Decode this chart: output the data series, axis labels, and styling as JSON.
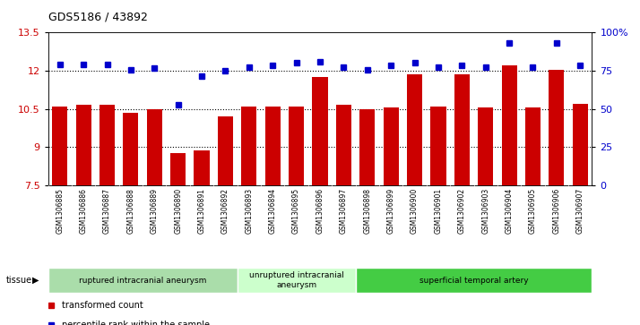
{
  "title": "GDS5186 / 43892",
  "samples": [
    "GSM1306885",
    "GSM1306886",
    "GSM1306887",
    "GSM1306888",
    "GSM1306889",
    "GSM1306890",
    "GSM1306891",
    "GSM1306892",
    "GSM1306893",
    "GSM1306894",
    "GSM1306895",
    "GSM1306896",
    "GSM1306897",
    "GSM1306898",
    "GSM1306899",
    "GSM1306900",
    "GSM1306901",
    "GSM1306902",
    "GSM1306903",
    "GSM1306904",
    "GSM1306905",
    "GSM1306906",
    "GSM1306907"
  ],
  "bar_values": [
    10.6,
    10.65,
    10.65,
    10.35,
    10.48,
    8.75,
    8.88,
    10.2,
    10.58,
    10.6,
    10.58,
    11.75,
    10.65,
    10.5,
    10.55,
    11.85,
    10.6,
    11.85,
    10.55,
    12.2,
    10.55,
    12.05,
    10.68
  ],
  "dot_values": [
    12.25,
    12.25,
    12.25,
    12.05,
    12.1,
    10.65,
    11.8,
    12.0,
    12.15,
    12.2,
    12.3,
    12.35,
    12.15,
    12.05,
    12.2,
    12.3,
    12.15,
    12.2,
    12.15,
    13.1,
    12.15,
    13.1,
    12.2
  ],
  "ylim_left": [
    7.5,
    13.5
  ],
  "yticks_left": [
    7.5,
    9.0,
    10.5,
    12.0,
    13.5
  ],
  "ytick_labels_left": [
    "7.5",
    "9",
    "10.5",
    "12",
    "13.5"
  ],
  "yticks_right_pct": [
    0,
    25,
    50,
    75,
    100
  ],
  "ytick_labels_right": [
    "0",
    "25",
    "50",
    "75",
    "100%"
  ],
  "bar_color": "#cc0000",
  "dot_color": "#0000cc",
  "groups": [
    {
      "label": "ruptured intracranial aneurysm",
      "start": 0,
      "end": 8,
      "color": "#aaddaa"
    },
    {
      "label": "unruptured intracranial\naneurysm",
      "start": 8,
      "end": 13,
      "color": "#ccffcc"
    },
    {
      "label": "superficial temporal artery",
      "start": 13,
      "end": 23,
      "color": "#44cc44"
    }
  ],
  "tissue_label": "tissue",
  "legend_bar_label": "transformed count",
  "legend_dot_label": "percentile rank within the sample",
  "dotted_lines": [
    9.0,
    10.5,
    12.0
  ],
  "tick_bg_color": "#d8d8d8"
}
